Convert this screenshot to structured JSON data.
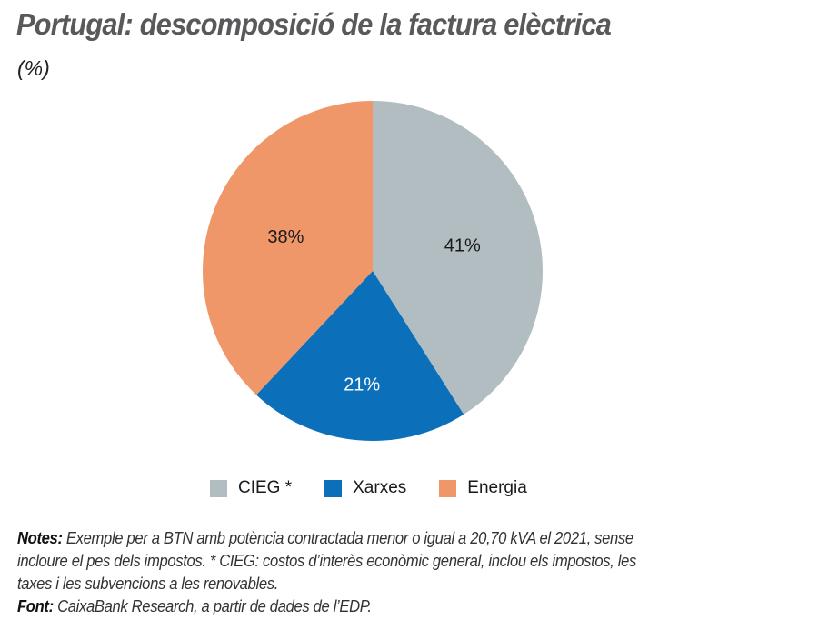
{
  "chart_data": {
    "type": "pie",
    "title": "Portugal: descomposició de la factura elèctrica",
    "subtitle": "(%)",
    "slices": [
      {
        "label": "CIEG *",
        "value": 41,
        "display": "41%",
        "color": "#B1BDC1",
        "label_color": "#1a1a1a"
      },
      {
        "label": "Xarxes",
        "value": 21,
        "display": "21%",
        "color": "#0B70B9",
        "label_color": "#ffffff"
      },
      {
        "label": "Energia",
        "value": 38,
        "display": "38%",
        "color": "#F0976A",
        "label_color": "#1a1a1a"
      }
    ],
    "start": "12 o'clock, clockwise",
    "legend_position": "bottom"
  },
  "notes": {
    "notes_label": "Notes:",
    "notes_line1": "Exemple per a BTN amb potència contractada menor o igual a 20,70 kVA el 2021, sense",
    "notes_line2": "incloure el pes dels impostos. * CIEG: costos d’interès econòmic general, inclou els impostos, les",
    "notes_line3": "taxes i les subvencions a les renovables.",
    "source_label": "Font:",
    "source_text": "CaixaBank Research, a partir de dades de l’EDP."
  }
}
